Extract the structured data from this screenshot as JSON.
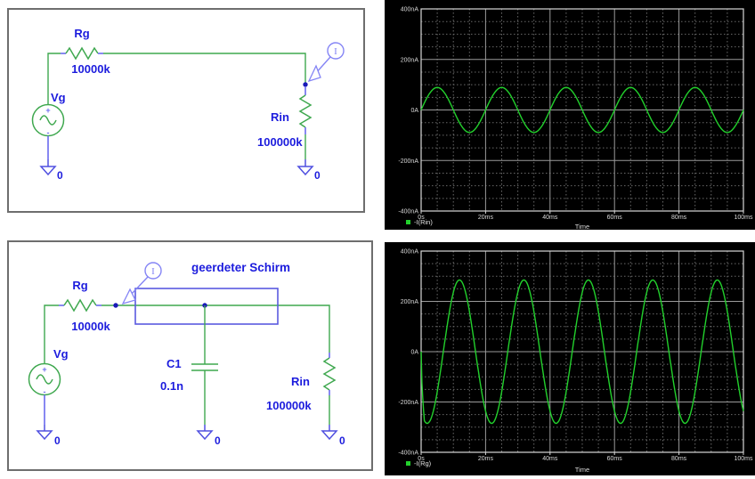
{
  "colors": {
    "wire_green": "#3fa84f",
    "trace_green": "#22d02c",
    "label_blue": "#1c1cdd",
    "pin_blue": "#6b6bee",
    "probe_blue": "#8585f5",
    "node_blue": "#1a1ab8",
    "ground_blue": "#5050e0",
    "shield_blue": "#5a5ae0",
    "panel_border": "#6e6e6e",
    "plot_bg": "#000000",
    "grid_major": "#9a9a9a",
    "grid_minor": "#696969",
    "plot_frame": "#d9d9d9",
    "tick_text": "#d9d9d9",
    "legend_text": "#e5e5e5"
  },
  "schematic1": {
    "source_label": "Vg",
    "plus": "+",
    "minus": "-",
    "r1_label": "Rg",
    "r1_value": "10000k",
    "probe_label": "I",
    "r2_label": "Rin",
    "r2_value": "100000k",
    "gnd_source": "0",
    "gnd_load": "0"
  },
  "schematic2": {
    "shield_label": "geerdeter Schirm",
    "source_label": "Vg",
    "plus": "+",
    "minus": "-",
    "r1_label": "Rg",
    "r1_value": "10000k",
    "probe_label": "I",
    "cap_label": "C1",
    "cap_value": "0.1n",
    "r2_label": "Rin",
    "r2_value": "100000k",
    "gnd_source": "0",
    "gnd_cap": "0",
    "gnd_load": "0"
  },
  "chart_data": [
    {
      "type": "line",
      "title": "",
      "xlabel": "Time",
      "x_unit": "ms",
      "y_unit": "nA",
      "xlim_ms": [
        0,
        100
      ],
      "ylim_nA": [
        -400,
        400
      ],
      "x_major_ms": 20,
      "x_minor_ms": 5,
      "y_major_nA": 200,
      "y_minor_nA": 50,
      "x_ticks": [
        "0s",
        "20ms",
        "40ms",
        "60ms",
        "80ms",
        "100ms"
      ],
      "y_ticks": [
        "400nA",
        "200nA",
        "0A",
        "-200nA",
        "-400nA"
      ],
      "grid": "on",
      "legend_position": "bottom-left",
      "legend": [
        {
          "label": "-I(Rin)",
          "color": "#22d02c"
        }
      ],
      "series": [
        {
          "name": "-I(Rin)",
          "waveform": "sine",
          "amplitude_nA": 89,
          "frequency_hz": 50,
          "phase_deg": 0,
          "offset_nA": 0,
          "startup_ramp_ms": 0
        }
      ]
    },
    {
      "type": "line",
      "title": "",
      "xlabel": "Time",
      "x_unit": "ms",
      "y_unit": "nA",
      "xlim_ms": [
        0,
        100
      ],
      "ylim_nA": [
        -400,
        400
      ],
      "x_major_ms": 20,
      "x_minor_ms": 5,
      "y_major_nA": 200,
      "y_minor_nA": 50,
      "x_ticks": [
        "0s",
        "20ms",
        "40ms",
        "60ms",
        "80ms",
        "100ms"
      ],
      "y_ticks": [
        "400nA",
        "200nA",
        "0A",
        "-200nA",
        "-400nA"
      ],
      "grid": "on",
      "legend_position": "bottom-left",
      "legend": [
        {
          "label": "-I(Rg)",
          "color": "#22d02c"
        }
      ],
      "series": [
        {
          "name": "-I(Rg)",
          "waveform": "sine",
          "amplitude_nA": 285,
          "frequency_hz": 50,
          "phase_deg": 236,
          "offset_nA": 0,
          "startup_ramp_ms": 1
        }
      ]
    }
  ]
}
